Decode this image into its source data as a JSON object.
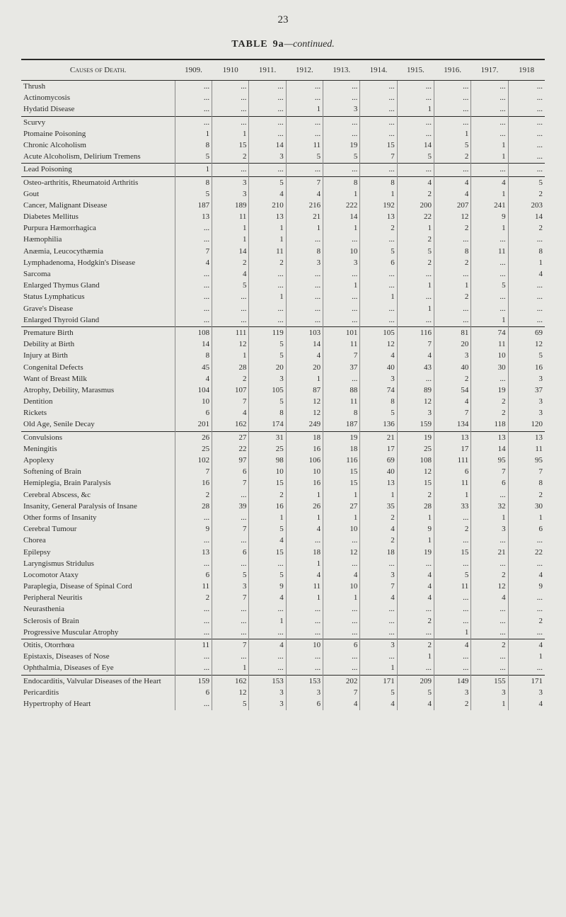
{
  "page_number": "23",
  "title_prefix": "TABLE",
  "title_num": "9a",
  "title_suffix": "—continued.",
  "header_label": "Causes of Death.",
  "years": [
    "1909.",
    "1910",
    "1911.",
    "1912.",
    "1913.",
    "1914.",
    "1915.",
    "1916.",
    "1917.",
    "1918"
  ],
  "sections": [
    {
      "rows": [
        {
          "label": "Thrush",
          "v": [
            "",
            "",
            "",
            "",
            "",
            "",
            "",
            "",
            "",
            ""
          ]
        },
        {
          "label": "Actinomycosis",
          "v": [
            "",
            "",
            "",
            "",
            "",
            "",
            "",
            "",
            "",
            ""
          ]
        },
        {
          "label": "Hydatid Disease",
          "v": [
            "",
            "",
            "",
            "1",
            "3",
            "",
            "1",
            "",
            "",
            ""
          ]
        }
      ]
    },
    {
      "rows": [
        {
          "label": "Scurvy",
          "v": [
            "",
            "",
            "",
            "",
            "",
            "",
            "",
            "",
            "",
            ""
          ]
        },
        {
          "label": "Ptomaine Poisoning",
          "v": [
            "1",
            "1",
            "",
            "",
            "",
            "",
            "",
            "1",
            "",
            ""
          ]
        },
        {
          "label": "Chronic Alcoholism",
          "v": [
            "8",
            "15",
            "14",
            "11",
            "19",
            "15",
            "14",
            "5",
            "1",
            ""
          ]
        },
        {
          "label": "Acute Alcoholism, Delirium Tremens",
          "v": [
            "5",
            "2",
            "3",
            "5",
            "5",
            "7",
            "5",
            "2",
            "1",
            ""
          ]
        }
      ]
    },
    {
      "rows": [
        {
          "label": "Lead Poisoning",
          "v": [
            "1",
            "",
            "",
            "",
            "",
            "",
            "",
            "",
            "",
            ""
          ]
        }
      ]
    },
    {
      "rows": [
        {
          "label": "Osteo-arthritis, Rheumatoid Arthritis",
          "v": [
            "8",
            "3",
            "5",
            "7",
            "8",
            "8",
            "4",
            "4",
            "4",
            "5"
          ]
        },
        {
          "label": "Gout",
          "v": [
            "5",
            "3",
            "4",
            "4",
            "1",
            "1",
            "2",
            "4",
            "1",
            "2"
          ]
        },
        {
          "label": "Cancer, Malignant Disease",
          "v": [
            "187",
            "189",
            "210",
            "216",
            "222",
            "192",
            "200",
            "207",
            "241",
            "203"
          ]
        },
        {
          "label": "Diabetes Mellitus",
          "v": [
            "13",
            "11",
            "13",
            "21",
            "14",
            "13",
            "22",
            "12",
            "9",
            "14"
          ]
        },
        {
          "label": "Purpura Hæmorrhagica",
          "v": [
            "",
            "1",
            "1",
            "1",
            "1",
            "2",
            "1",
            "2",
            "1",
            "2"
          ]
        },
        {
          "label": "Hæmophilia",
          "v": [
            "",
            "1",
            "1",
            "",
            "",
            "",
            "2",
            "",
            "",
            ""
          ]
        },
        {
          "label": "Anæmia, Leucocythæmia",
          "v": [
            "7",
            "14",
            "11",
            "8",
            "10",
            "5",
            "5",
            "8",
            "11",
            "8"
          ]
        },
        {
          "label": "Lymphadenoma, Hodgkin's Disease",
          "v": [
            "4",
            "2",
            "2",
            "3",
            "3",
            "6",
            "2",
            "2",
            "",
            "1"
          ]
        },
        {
          "label": "Sarcoma",
          "v": [
            "",
            "4",
            "",
            "",
            "",
            "",
            "",
            "",
            "",
            "4"
          ]
        },
        {
          "label": "Enlarged Thymus Gland",
          "v": [
            "",
            "5",
            "",
            "",
            "1",
            "",
            "1",
            "1",
            "5",
            ""
          ]
        },
        {
          "label": "Status Lymphaticus",
          "v": [
            "",
            "",
            "1",
            "",
            "",
            "1",
            "",
            "2",
            "",
            ""
          ]
        },
        {
          "label": "Grave's Disease",
          "v": [
            "",
            "",
            "",
            "",
            "",
            "",
            "1",
            "",
            "",
            ""
          ]
        },
        {
          "label": "Enlarged Thyroid Gland",
          "v": [
            "",
            "",
            "",
            "",
            "",
            "",
            "",
            "",
            "1",
            ""
          ]
        }
      ]
    },
    {
      "rows": [
        {
          "label": "Premature Birth",
          "v": [
            "108",
            "111",
            "119",
            "103",
            "101",
            "105",
            "116",
            "81",
            "74",
            "69"
          ]
        },
        {
          "label": "Debility at Birth",
          "v": [
            "14",
            "12",
            "5",
            "14",
            "11",
            "12",
            "7",
            "20",
            "11",
            "12"
          ]
        },
        {
          "label": "Injury at Birth",
          "v": [
            "8",
            "1",
            "5",
            "4",
            "7",
            "4",
            "4",
            "3",
            "10",
            "5"
          ]
        },
        {
          "label": "Congenital Defects",
          "v": [
            "45",
            "28",
            "20",
            "20",
            "37",
            "40",
            "43",
            "40",
            "30",
            "16"
          ]
        },
        {
          "label": "Want of Breast Milk",
          "v": [
            "4",
            "2",
            "3",
            "1",
            "",
            "3",
            "",
            "2",
            "",
            "3"
          ]
        },
        {
          "label": "Atrophy, Debility, Marasmus",
          "v": [
            "104",
            "107",
            "105",
            "87",
            "88",
            "74",
            "89",
            "54",
            "19",
            "37"
          ]
        },
        {
          "label": "Dentition",
          "v": [
            "10",
            "7",
            "5",
            "12",
            "11",
            "8",
            "12",
            "4",
            "2",
            "3"
          ]
        },
        {
          "label": "Rickets",
          "v": [
            "6",
            "4",
            "8",
            "12",
            "8",
            "5",
            "3",
            "7",
            "2",
            "3"
          ]
        },
        {
          "label": "Old Age, Senile Decay",
          "v": [
            "201",
            "162",
            "174",
            "249",
            "187",
            "136",
            "159",
            "134",
            "118",
            "120"
          ]
        }
      ]
    },
    {
      "rows": [
        {
          "label": "Convulsions",
          "v": [
            "26",
            "27",
            "31",
            "18",
            "19",
            "21",
            "19",
            "13",
            "13",
            "13"
          ]
        },
        {
          "label": "Meningitis",
          "v": [
            "25",
            "22",
            "25",
            "16",
            "18",
            "17",
            "25",
            "17",
            "14",
            "11"
          ]
        },
        {
          "label": "Apoplexy",
          "v": [
            "102",
            "97",
            "98",
            "106",
            "116",
            "69",
            "108",
            "111",
            "95",
            "95"
          ]
        },
        {
          "label": "Softening of Brain",
          "v": [
            "7",
            "6",
            "10",
            "10",
            "15",
            "40",
            "12",
            "6",
            "7",
            "7"
          ]
        },
        {
          "label": "Hemiplegia, Brain Paralysis",
          "v": [
            "16",
            "7",
            "15",
            "16",
            "15",
            "13",
            "15",
            "11",
            "6",
            "8"
          ]
        },
        {
          "label": "Cerebral Abscess, &c",
          "v": [
            "2",
            "",
            "2",
            "1",
            "1",
            "1",
            "2",
            "1",
            "",
            "2"
          ]
        },
        {
          "label": "Insanity, General Paralysis of Insane",
          "v": [
            "28",
            "39",
            "16",
            "26",
            "27",
            "35",
            "28",
            "33",
            "32",
            "30"
          ]
        },
        {
          "label": "Other forms of Insanity",
          "v": [
            "",
            "",
            "1",
            "1",
            "1",
            "2",
            "1",
            "",
            "1",
            "1"
          ]
        },
        {
          "label": "Cerebral Tumour",
          "v": [
            "9",
            "7",
            "5",
            "4",
            "10",
            "4",
            "9",
            "2",
            "3",
            "6"
          ]
        },
        {
          "label": "Chorea",
          "v": [
            "",
            "",
            "4",
            "",
            "",
            "2",
            "1",
            "",
            "",
            ""
          ]
        },
        {
          "label": "Epilepsy",
          "v": [
            "13",
            "6",
            "15",
            "18",
            "12",
            "18",
            "19",
            "15",
            "21",
            "22"
          ]
        },
        {
          "label": "Laryngismus Stridulus",
          "v": [
            "",
            "",
            "",
            "1",
            "",
            "",
            "",
            "",
            "",
            ""
          ]
        },
        {
          "label": "Locomotor Ataxy",
          "v": [
            "6",
            "5",
            "5",
            "4",
            "4",
            "3",
            "4",
            "5",
            "2",
            "4"
          ]
        },
        {
          "label": "Paraplegia, Disease of Spinal Cord",
          "v": [
            "11",
            "3",
            "9",
            "11",
            "10",
            "7",
            "4",
            "11",
            "12",
            "9"
          ]
        },
        {
          "label": "Peripheral Neuritis",
          "v": [
            "2",
            "7",
            "4",
            "1",
            "1",
            "4",
            "4",
            "",
            "4",
            ""
          ]
        },
        {
          "label": "Neurasthenia",
          "v": [
            "",
            "",
            "",
            "",
            "",
            "",
            "",
            "",
            "",
            ""
          ]
        },
        {
          "label": "Sclerosis of Brain",
          "v": [
            "",
            "",
            "1",
            "",
            "",
            "",
            "2",
            "",
            "",
            "2"
          ]
        },
        {
          "label": "Progressive Muscular Atrophy",
          "v": [
            "",
            "",
            "",
            "",
            "",
            "",
            "",
            "1",
            "",
            ""
          ]
        }
      ]
    },
    {
      "rows": [
        {
          "label": "Otitis, Otorrhœa",
          "v": [
            "11",
            "7",
            "4",
            "10",
            "6",
            "3",
            "2",
            "4",
            "2",
            "4"
          ]
        },
        {
          "label": "Epistaxis, Diseases of Nose",
          "v": [
            "",
            "",
            "",
            "",
            "",
            "",
            "1",
            "",
            "",
            "1"
          ]
        },
        {
          "label": "Ophthalmia, Diseases of Eye",
          "v": [
            "",
            "1",
            "",
            "",
            "",
            "1",
            "",
            "",
            "",
            ""
          ]
        }
      ]
    },
    {
      "rows": [
        {
          "label": "Endocarditis, Valvular Diseases of the Heart",
          "v": [
            "159",
            "162",
            "153",
            "153",
            "202",
            "171",
            "209",
            "149",
            "155",
            "171"
          ],
          "indent": false
        },
        {
          "label": "Pericarditis",
          "v": [
            "6",
            "12",
            "3",
            "3",
            "7",
            "5",
            "5",
            "3",
            "3",
            "3"
          ]
        },
        {
          "label": "Hypertrophy of Heart",
          "v": [
            "...",
            "5",
            "3",
            "6",
            "4",
            "4",
            "4",
            "2",
            "1",
            "4"
          ]
        }
      ]
    }
  ]
}
